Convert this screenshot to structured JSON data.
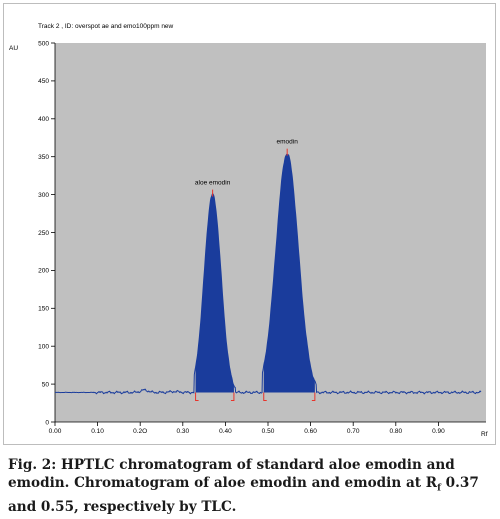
{
  "chart_data": {
    "type": "line",
    "title": "Track  2 , ID: overspot ae and emo100ppm new",
    "ylabel": "AU",
    "xlabel": "Rf",
    "xlim": [
      0.0,
      1.0
    ],
    "ylim": [
      0,
      500
    ],
    "x_ticks": [
      "0.00",
      "0.10",
      "0.2O",
      "0.30",
      "0.40",
      "0.50",
      "0.60",
      "0.70",
      "0.80",
      "0.90"
    ],
    "x_tick_values": [
      0.0,
      0.1,
      0.2,
      0.3,
      0.4,
      0.5,
      0.6,
      0.7,
      0.8,
      0.9
    ],
    "y_ticks": [
      0,
      50,
      100,
      150,
      200,
      250,
      300,
      350,
      400,
      450,
      500
    ],
    "baseline": 39,
    "grid": false,
    "plot_background": "#c0c0c0",
    "trace_color": "#1a3c9c",
    "fill_color": "#1a3c9c",
    "marker_color": "#e8332a",
    "peaks": [
      {
        "label": "aloe emodin",
        "rf": 0.37,
        "height": 300,
        "start": 0.33,
        "end": 0.42
      },
      {
        "label": "emodin",
        "rf": 0.545,
        "height": 354,
        "start": 0.49,
        "end": 0.61
      }
    ]
  },
  "caption": {
    "part1": "Fig. 2: HPTLC chromatogram of standard aloe emodin and emodin. Chromatogram of aloe emodin and emodin at R",
    "sub": "f",
    "part2": " 0.37 and 0.55, respectively by TLC."
  }
}
